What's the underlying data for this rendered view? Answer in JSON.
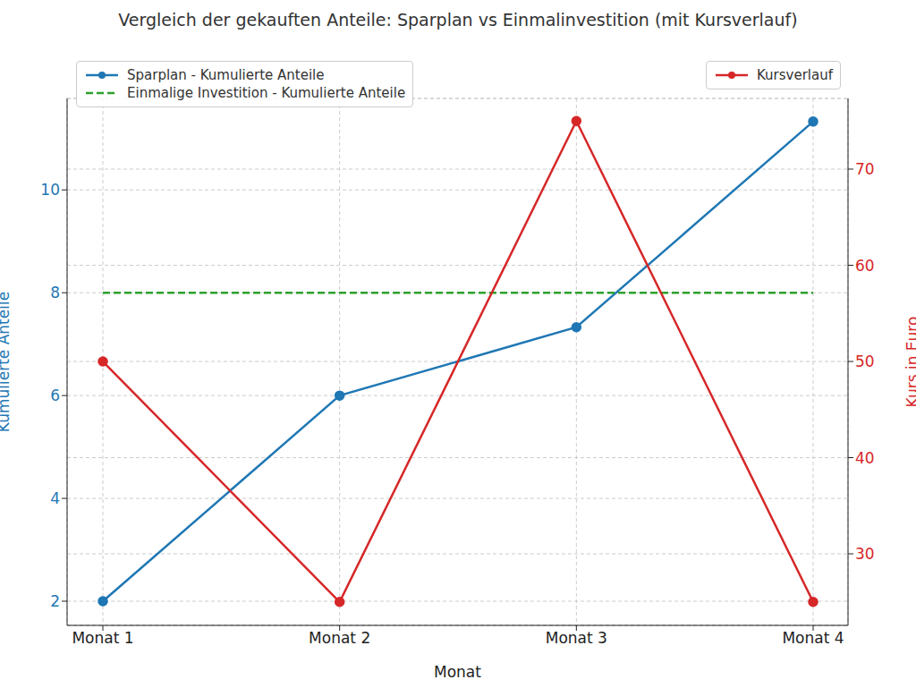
{
  "chart_data": {
    "type": "line",
    "title": "Vergleich der gekauften Anteile: Sparplan vs Einmalinvestition (mit Kursverlauf)",
    "x_label": "Monat",
    "y_label": "Kumulierte Anteile",
    "y2_label": "Kurs in Euro",
    "categories": [
      "Monat 1",
      "Monat 2",
      "Monat 3",
      "Monat 4"
    ],
    "ylim": [
      1.53,
      11.78
    ],
    "yticks": [
      2,
      4,
      6,
      8,
      10
    ],
    "y2lim": [
      22.56,
      77.35
    ],
    "y2ticks": [
      30,
      40,
      50,
      60,
      70
    ],
    "grid": true,
    "legend": "upper left",
    "series": [
      {
        "name": "Sparplan - Kumulierte Anteile",
        "color": "#1f77b4",
        "values": [
          2,
          6,
          7.33,
          11.33
        ],
        "marker": "o",
        "line_style": "solid"
      },
      {
        "name": "Einmalige Investition - Kumulierte Anteile",
        "color": "#2ca02c",
        "values": [
          8,
          8,
          8,
          8
        ],
        "marker": "none",
        "line_style": "dashed"
      },
      {
        "name": "Kursverlauf",
        "color": "#d62728",
        "values": [
          50,
          25,
          75,
          25
        ],
        "axis": "y2",
        "marker": "o",
        "line_style": "solid"
      }
    ]
  }
}
